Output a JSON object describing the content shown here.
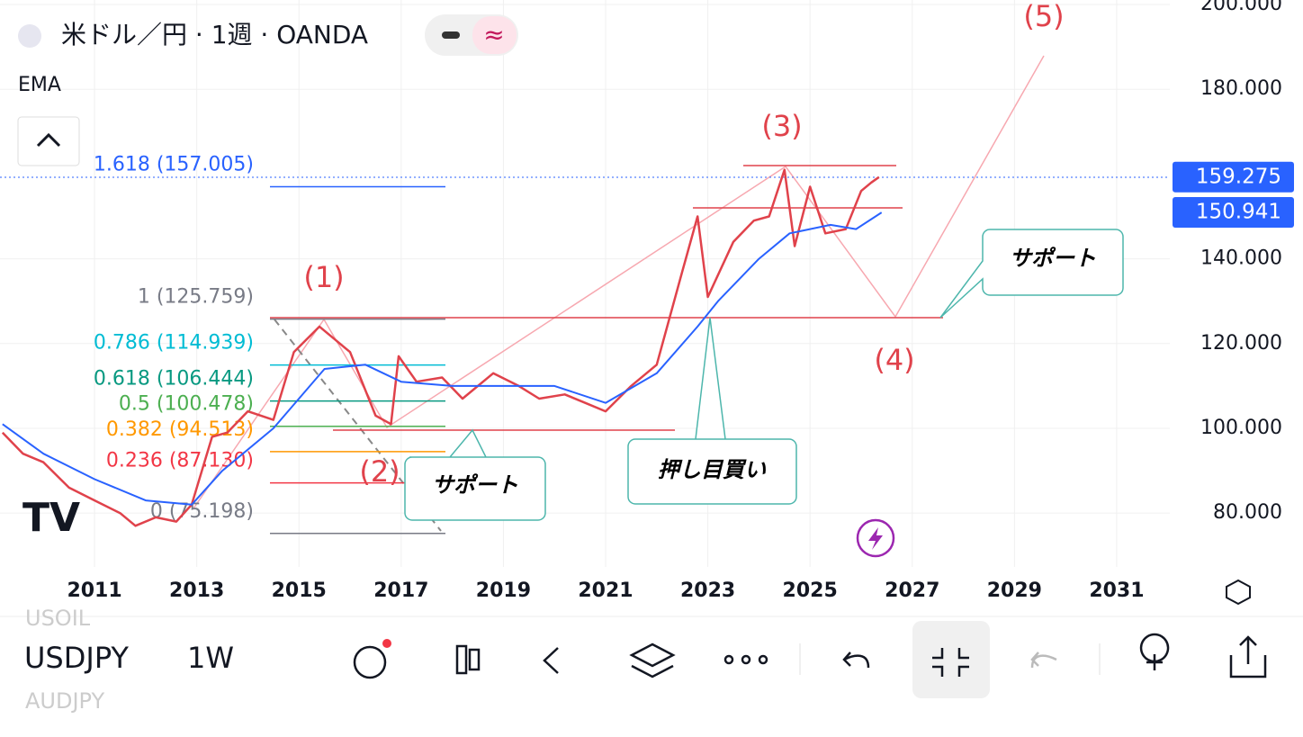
{
  "header": {
    "symbol": "米ドル／円 · 1週 · OANDA",
    "indicator": "EMA"
  },
  "chart_data": {
    "type": "line",
    "xlim": [
      2009.15,
      2032.04
    ],
    "ylim": [
      67.3,
      201.06
    ],
    "xticks": [
      2011,
      2013,
      2015,
      2017,
      2019,
      2021,
      2023,
      2025,
      2027,
      2029,
      2031
    ],
    "yticks": [
      {
        "value": 80,
        "label": "80.000"
      },
      {
        "value": 100,
        "label": "100.000"
      },
      {
        "value": 120,
        "label": "120.000"
      },
      {
        "value": 140,
        "label": "140.000"
      },
      {
        "value": 180,
        "label": "180.000"
      },
      {
        "value": 200,
        "label": "200.000"
      }
    ],
    "grid": true,
    "series": [
      {
        "color": "#e0424b",
        "x": [
          2009.2,
          2009.6,
          2010.0,
          2010.5,
          2011.0,
          2011.5,
          2011.8,
          2012.2,
          2012.6,
          2012.9,
          2013.3,
          2013.6,
          2014.0,
          2014.5,
          2014.9,
          2015.4,
          2015.7,
          2016.0,
          2016.5,
          2016.8,
          2016.95,
          2017.3,
          2017.8,
          2018.2,
          2018.8,
          2019.3,
          2019.7,
          2020.2,
          2020.6,
          2021.0,
          2021.5,
          2022.0,
          2022.5,
          2022.8,
          2023.0,
          2023.5,
          2023.9,
          2024.2,
          2024.5,
          2024.7,
          2025.0,
          2025.3,
          2025.7,
          2026.0,
          2026.2,
          2026.35
        ],
        "values": [
          99,
          94,
          92,
          86,
          83,
          80,
          77,
          79,
          78,
          82,
          98,
          99,
          104,
          102,
          118,
          124,
          121,
          118,
          103,
          101,
          117,
          111,
          112,
          107,
          113,
          110,
          107,
          108,
          106,
          104,
          110,
          115,
          137,
          150,
          131,
          144,
          149,
          150,
          161,
          143,
          157,
          146,
          147,
          156,
          158,
          159.275
        ]
      },
      {
        "color": "#2962ff",
        "x": [
          2009.2,
          2010,
          2011,
          2012,
          2012.9,
          2013.5,
          2014.5,
          2015.5,
          2016.3,
          2017,
          2018,
          2019,
          2020,
          2021,
          2022,
          2022.8,
          2023.2,
          2024,
          2024.6,
          2025.4,
          2025.9,
          2026.4
        ],
        "values": [
          101,
          94,
          88,
          83,
          82,
          90,
          100,
          114,
          115,
          111,
          110,
          110,
          110,
          106,
          113,
          124,
          130,
          140,
          146,
          148,
          147,
          150.941
        ]
      }
    ],
    "price_labels": [
      159.275,
      150.941
    ],
    "fib_levels": [
      {
        "value": 157.005,
        "label": "1.618 (157.005)",
        "color": "#2962ff"
      },
      {
        "value": 125.759,
        "label": "1 (125.759)",
        "color": "#787b86"
      },
      {
        "value": 114.939,
        "label": "0.786 (114.939)",
        "color": "#00bcd4"
      },
      {
        "value": 106.444,
        "label": "0.618 (106.444)",
        "color": "#089981"
      },
      {
        "value": 100.478,
        "label": "0.5 (100.478)",
        "color": "#4caf50"
      },
      {
        "value": 94.513,
        "label": "0.382 (94.513)",
        "color": "#ff9800"
      },
      {
        "value": 87.13,
        "label": "0.236 (87.130)",
        "color": "#f23645"
      },
      {
        "value": 75.198,
        "label": "0 (75.198)",
        "color": "#787b86"
      }
    ],
    "annotations": [
      "(1)",
      "(2)",
      "(3)",
      "(4)",
      "(5)",
      "サポート",
      "サポート",
      "押し目買い"
    ]
  },
  "toolbar": {
    "symbol": "USDJPY",
    "interval": "1W",
    "ghost_above": "USOIL",
    "ghost_below": "AUDJPY"
  }
}
